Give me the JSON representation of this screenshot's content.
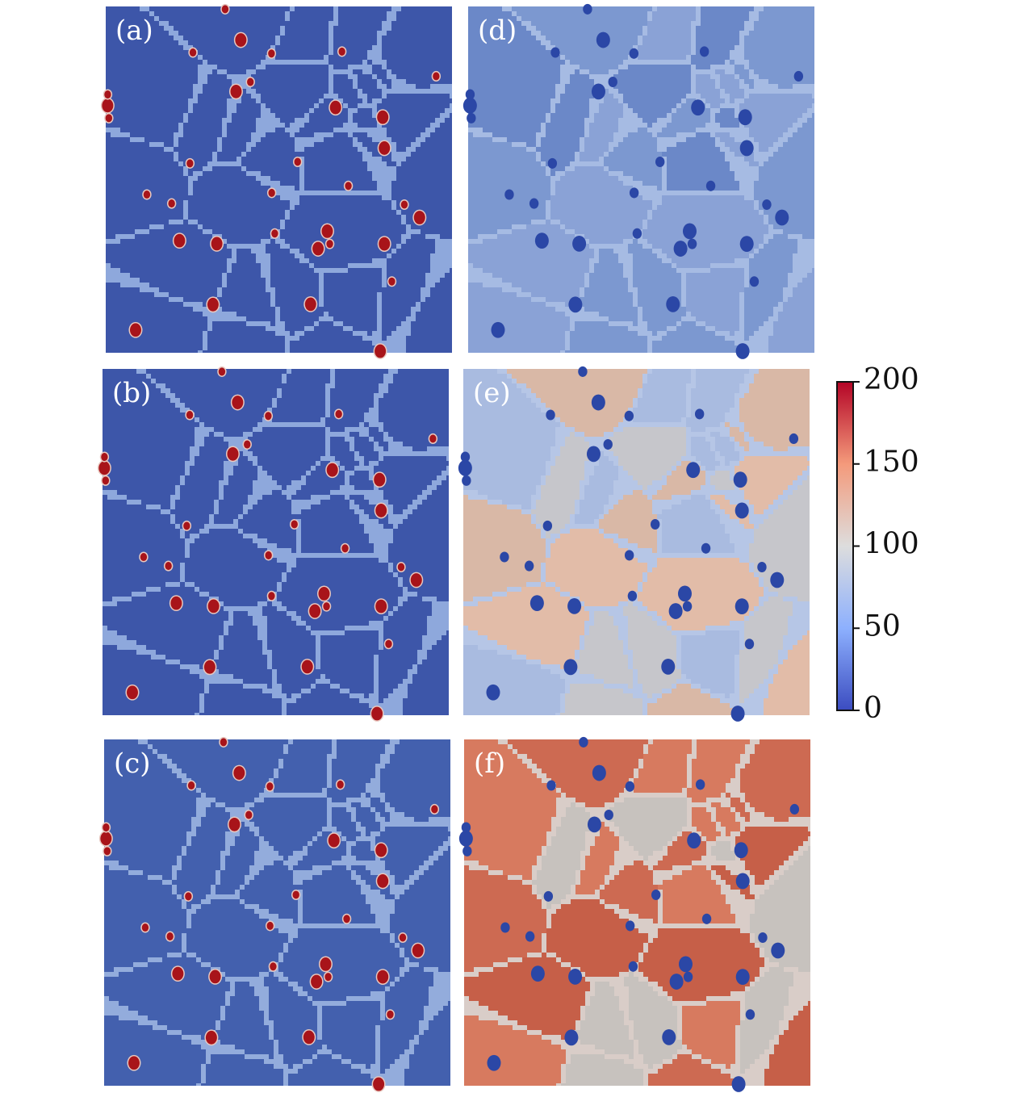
{
  "panels": [
    {
      "label": "(a)"
    },
    {
      "label": "(b)"
    },
    {
      "label": "(c)"
    },
    {
      "label": "(d)"
    },
    {
      "label": "(e)"
    },
    {
      "label": "(f)"
    }
  ],
  "colorbar": {
    "range": [
      0,
      200
    ],
    "ticks": [
      0,
      50,
      100,
      150,
      200
    ]
  }
}
